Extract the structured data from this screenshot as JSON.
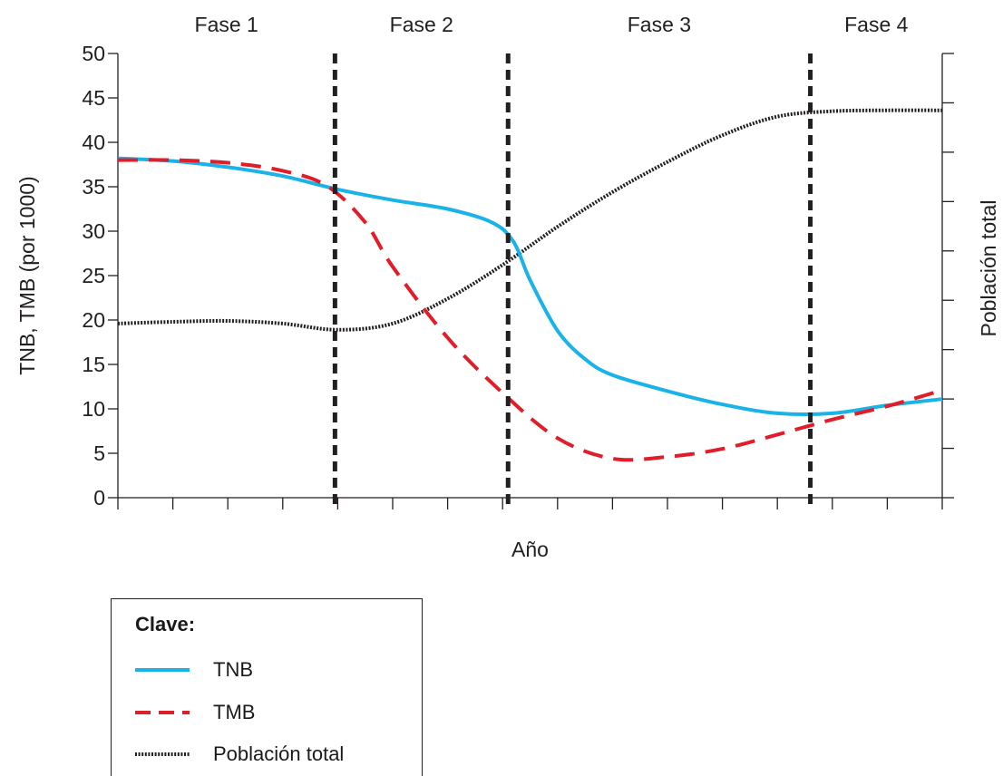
{
  "chart_data": {
    "type": "line",
    "xlabel": "Año",
    "ylabel": "TNB, TMB (por 1000)",
    "y2label": "Población total",
    "ylim": [
      0,
      50
    ],
    "y_ticks": [
      "0",
      "5",
      "10",
      "15",
      "20",
      "25",
      "30",
      "35",
      "40",
      "45",
      "50"
    ],
    "phases": [
      "Fase 1",
      "Fase 2",
      "Fase 3",
      "Fase 4"
    ],
    "phase_boundaries": [
      3.95,
      7.1,
      12.6
    ],
    "xlim": [
      0,
      15
    ],
    "series": [
      {
        "name": "TNB",
        "color": "#1ab3e8",
        "style": "solid",
        "x": [
          0,
          1,
          2,
          3,
          4,
          5,
          6,
          6.8,
          7.2,
          7.5,
          8,
          8.5,
          9,
          10,
          11,
          12,
          13,
          14,
          15
        ],
        "y": [
          38.2,
          37.9,
          37.2,
          36.2,
          34.7,
          33.5,
          32.5,
          31.0,
          28.8,
          24.5,
          18.8,
          15.6,
          13.8,
          12.0,
          10.5,
          9.5,
          9.5,
          10.4,
          11.1
        ]
      },
      {
        "name": "TMB",
        "color": "#e11d2a",
        "style": "dashed",
        "x": [
          0,
          1,
          2,
          3,
          3.8,
          4.5,
          5,
          6,
          7,
          8,
          9,
          10,
          11,
          12,
          13,
          14,
          15
        ],
        "y": [
          38.0,
          38.0,
          37.7,
          36.8,
          35.1,
          31.0,
          26.0,
          18.0,
          11.8,
          6.7,
          4.4,
          4.6,
          5.5,
          7.1,
          8.8,
          10.3,
          12.1
        ]
      },
      {
        "name": "Población total",
        "color": "#231f20",
        "style": "dotted",
        "x": [
          0,
          1,
          2,
          3,
          4,
          5,
          6,
          7,
          8,
          9,
          10,
          11,
          12,
          13,
          14,
          15
        ],
        "y": [
          19.6,
          19.8,
          19.9,
          19.6,
          18.9,
          19.6,
          22.4,
          26.2,
          30.5,
          34.4,
          37.8,
          40.8,
          42.9,
          43.5,
          43.6,
          43.6
        ]
      }
    ]
  },
  "legend": {
    "title": "Clave:",
    "items": [
      "TNB",
      "TMB",
      "Población total"
    ]
  }
}
